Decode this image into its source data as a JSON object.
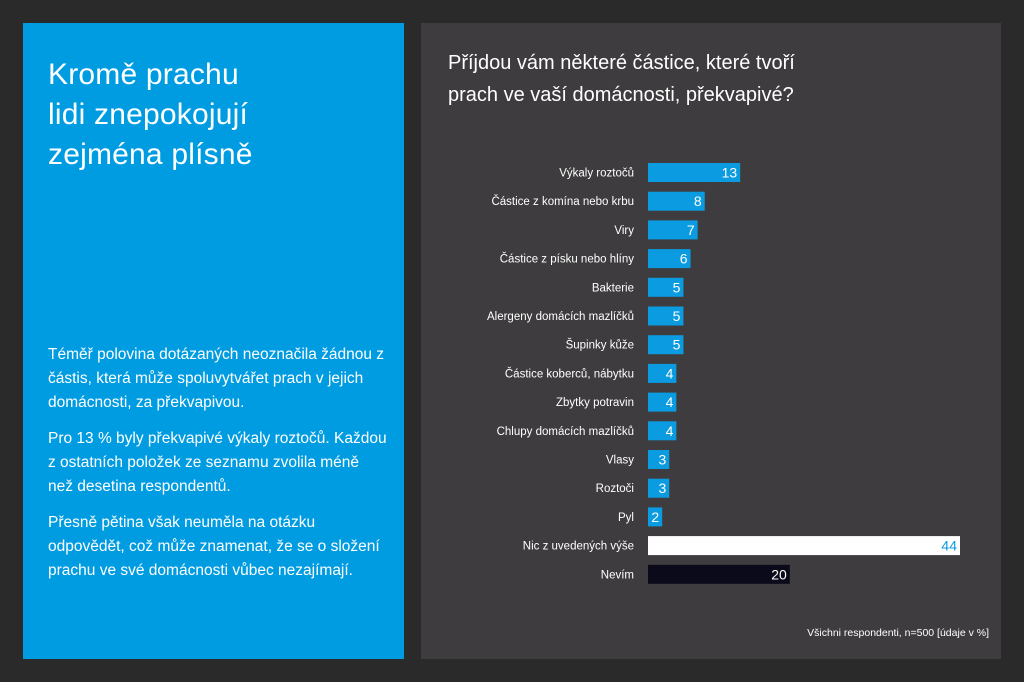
{
  "left": {
    "title_lines": [
      "Kromě prachu",
      "lidi znepokojují",
      "zejména plísně"
    ],
    "paragraphs": [
      "Téměř polovina dotázaných neoznačila žádnou z částis, která může spoluvytvářet prach v jejich domácnosti, za překvapivou.",
      "Pro 13 % byly překvapivé výkaly roztočů. Každou z ostatních položek ze seznamu zvolila méně než desetina respondentů.",
      "Přesně pětina však neuměla na otázku odpovědět, což může znamenat, že se o složení prachu ve své domácnosti vůbec nezajímají."
    ]
  },
  "chart_data": {
    "type": "bar",
    "orientation": "horizontal",
    "title_lines": [
      "Příjdou vám některé částice, které tvoří",
      "prach ve vaší domácnosti, překvapivé?"
    ],
    "categories": [
      "Výkaly roztočů",
      "Částice z komína nebo krbu",
      "Viry",
      "Částice z písku nebo hlíny",
      "Bakterie",
      "Alergeny domácích mazlíčků",
      "Šupinky kůže",
      "Částice koberců, nábytku",
      "Zbytky potravin",
      "Chlupy domácích mazlíčků",
      "Vlasy",
      "Roztoči",
      "Pyl",
      "Nic z uvedených výše",
      "Nevím"
    ],
    "values": [
      13,
      8,
      7,
      6,
      5,
      5,
      5,
      4,
      4,
      4,
      3,
      3,
      2,
      44,
      20
    ],
    "bar_colors": {
      "default": "#0a9be0",
      "Nic z uvedených výše": "#ffffff",
      "Nevím": "#0b0a1a"
    },
    "label_colors": {
      "default": "#ffffff",
      "Nic z uvedených výše": "#0a9be0"
    },
    "xlim": [
      0,
      44
    ],
    "grid": false,
    "footnote": "Všichni respondenti, n=500 [údaje v %]"
  }
}
